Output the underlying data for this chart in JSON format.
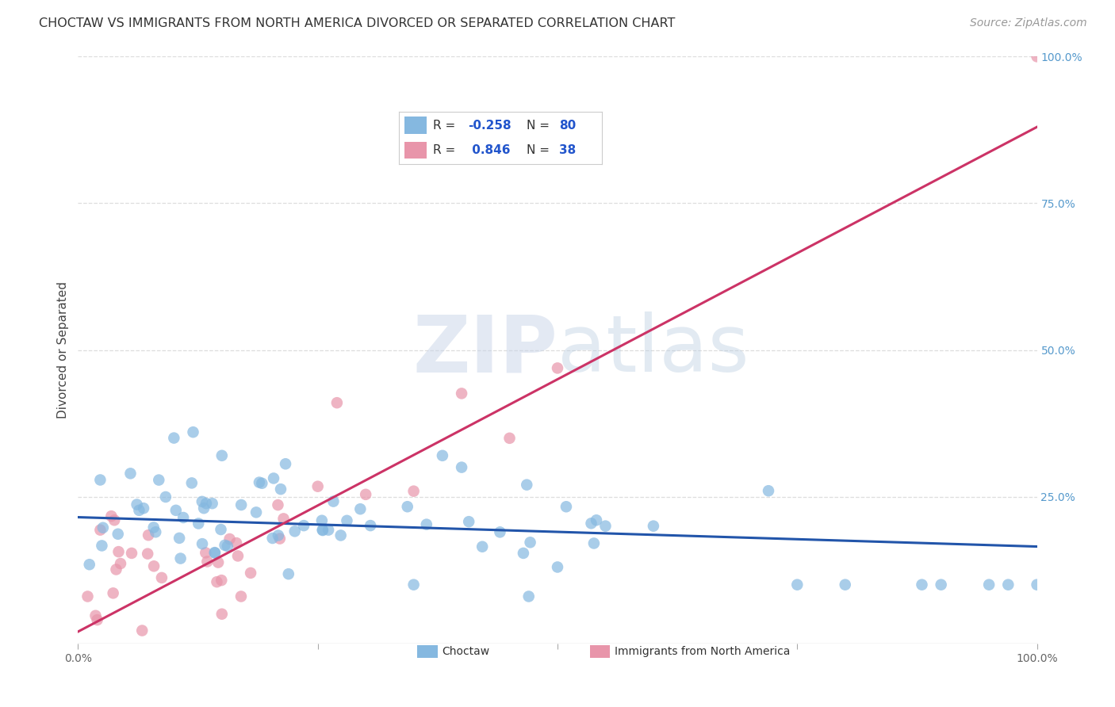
{
  "title": "CHOCTAW VS IMMIGRANTS FROM NORTH AMERICA DIVORCED OR SEPARATED CORRELATION CHART",
  "source_text": "Source: ZipAtlas.com",
  "ylabel": "Divorced or Separated",
  "xlim": [
    0.0,
    1.0
  ],
  "ylim": [
    0.0,
    1.0
  ],
  "blue_R": -0.258,
  "blue_N": 80,
  "pink_R": 0.846,
  "pink_N": 38,
  "blue_color": "#85b8e0",
  "pink_color": "#e895aa",
  "blue_line_color": "#2255aa",
  "pink_line_color": "#cc3366",
  "watermark_zip": "ZIP",
  "watermark_atlas": "atlas",
  "background_color": "#ffffff",
  "grid_color": "#dddddd",
  "title_fontsize": 11.5,
  "axis_label_fontsize": 11,
  "tick_fontsize": 10,
  "legend_fontsize": 11,
  "source_fontsize": 10,
  "blue_line_x0": 0.0,
  "blue_line_y0": 0.215,
  "blue_line_x1": 1.0,
  "blue_line_y1": 0.165,
  "pink_line_x0": 0.0,
  "pink_line_y0": 0.02,
  "pink_line_x1": 1.0,
  "pink_line_y1": 0.88
}
